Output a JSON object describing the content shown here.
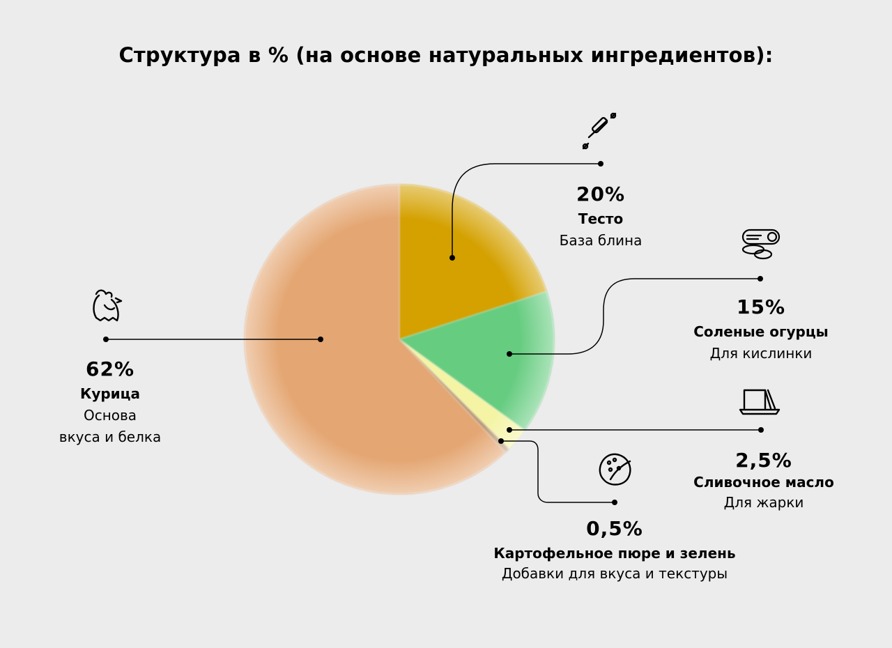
{
  "title": "Структура в % (на основе натуральных ингредиентов):",
  "chart_data": {
    "type": "pie",
    "title": "Структура в % (на основе натуральных ингредиентов):",
    "slices": [
      {
        "name": "Тесто",
        "value": 20,
        "percent_label": "20%",
        "description": "База блина",
        "color": "#d4a100",
        "icon": "rolling-pin-icon"
      },
      {
        "name": "Соленые огурцы",
        "value": 15,
        "percent_label": "15%",
        "description": "Для кислинки",
        "color": "#66cc80",
        "icon": "pickles-jar-icon"
      },
      {
        "name": "Сливочное масло",
        "value": 2.5,
        "percent_label": "2,5%",
        "description": "Для жарки",
        "color": "#f4f4a4",
        "icon": "butter-dish-icon"
      },
      {
        "name": "Картофельное пюре и зелень",
        "value": 0.5,
        "percent_label": "0,5%",
        "description": "Добавки для вкуса и текстуры",
        "color": "#b89a76",
        "icon": "potato-icon"
      },
      {
        "name": "Курица",
        "value": 62,
        "percent_label": "62%",
        "description": "Основа вкуса и белка",
        "description_lines": [
          "Основа",
          "вкуса и белка"
        ],
        "color": "#e4a672",
        "icon": "chicken-icon"
      }
    ]
  }
}
